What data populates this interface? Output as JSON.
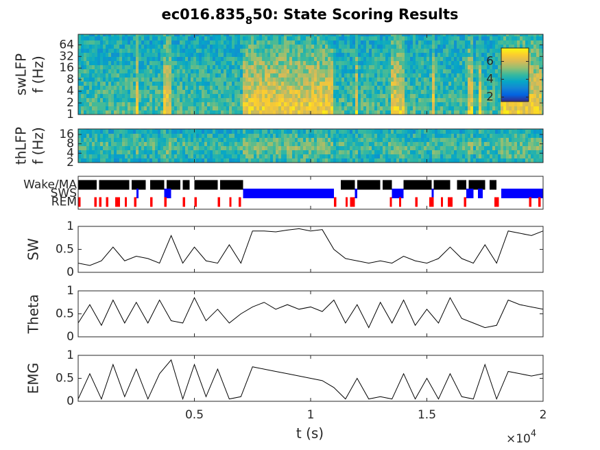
{
  "figure": {
    "title_parts": [
      "ec016.835",
      "8",
      "50: State Scoring Results"
    ],
    "xlabel": "t (s)",
    "x_exponent": [
      "×10",
      "4"
    ],
    "xlim": [
      0,
      20000
    ],
    "xticks": [
      {
        "value": 5000,
        "label": "0.5"
      },
      {
        "value": 10000,
        "label": "1"
      },
      {
        "value": 15000,
        "label": "1.5"
      },
      {
        "value": 20000,
        "label": "2"
      }
    ],
    "x": [
      0,
      500,
      1000,
      1500,
      2000,
      2500,
      3000,
      3500,
      4000,
      4500,
      5000,
      5500,
      6000,
      6500,
      7000,
      7500,
      8000,
      8500,
      9000,
      9500,
      10000,
      10500,
      11000,
      11500,
      12000,
      12500,
      13000,
      13500,
      14000,
      14500,
      15000,
      15500,
      16000,
      16500,
      17000,
      17500,
      18000,
      18500,
      19000,
      19500,
      20000
    ]
  },
  "chart_data": [
    {
      "type": "spectrogram",
      "ylabel": [
        "swLFP",
        "f (Hz)"
      ],
      "log_y": true,
      "ylim": [
        1,
        120
      ],
      "yticks": [
        1,
        2,
        4,
        8,
        16,
        32,
        64
      ],
      "colorbar": {
        "clim": [
          1.5,
          7.5
        ],
        "ticks": [
          2,
          4,
          6
        ]
      }
    },
    {
      "type": "spectrogram",
      "ylabel": [
        "thLFP",
        "f (Hz)"
      ],
      "log_y": true,
      "ylim": [
        2,
        24
      ],
      "yticks": [
        2,
        4,
        8,
        16
      ]
    },
    {
      "type": "state",
      "states": [
        {
          "name": "Wake/MA",
          "color": "#000000",
          "intervals": [
            [
              0,
              800
            ],
            [
              900,
              2200
            ],
            [
              2300,
              2900
            ],
            [
              3100,
              3700
            ],
            [
              3800,
              4400
            ],
            [
              4500,
              4800
            ],
            [
              5000,
              6000
            ],
            [
              6100,
              7100
            ],
            [
              11300,
              11900
            ],
            [
              12000,
              13000
            ],
            [
              13100,
              13500
            ],
            [
              14000,
              15200
            ],
            [
              15300,
              16000
            ],
            [
              16300,
              16700
            ],
            [
              16800,
              17500
            ],
            [
              17700,
              18000
            ]
          ]
        },
        {
          "name": "SWS",
          "color": "#0000ff",
          "intervals": [
            [
              2500,
              2600
            ],
            [
              3700,
              4000
            ],
            [
              7100,
              11000
            ],
            [
              11900,
              12000
            ],
            [
              13500,
              14000
            ],
            [
              15200,
              15300
            ],
            [
              16700,
              17000
            ],
            [
              17200,
              17400
            ],
            [
              18200,
              20000
            ]
          ]
        },
        {
          "name": "REM",
          "color": "#ff0000",
          "intervals": [
            [
              0,
              100
            ],
            [
              700,
              800
            ],
            [
              900,
              1000
            ],
            [
              1200,
              1300
            ],
            [
              1600,
              1800
            ],
            [
              2000,
              2100
            ],
            [
              2400,
              2500
            ],
            [
              3100,
              3200
            ],
            [
              3700,
              3800
            ],
            [
              4500,
              4600
            ],
            [
              5000,
              5100
            ],
            [
              6000,
              6100
            ],
            [
              6500,
              6600
            ],
            [
              6900,
              7000
            ],
            [
              11000,
              11100
            ],
            [
              11500,
              11600
            ],
            [
              11700,
              11900
            ],
            [
              13400,
              13500
            ],
            [
              13800,
              13900
            ],
            [
              14500,
              14600
            ],
            [
              15100,
              15300
            ],
            [
              15600,
              15700
            ],
            [
              15900,
              16100
            ],
            [
              16600,
              16700
            ],
            [
              17900,
              18100
            ],
            [
              19400,
              19500
            ],
            [
              19800,
              19900
            ]
          ]
        }
      ]
    },
    {
      "type": "line",
      "ylabel": "SW",
      "ylim": [
        0,
        1
      ],
      "yticks": [
        0,
        0.5,
        1
      ],
      "color": "#000000",
      "values": [
        0.2,
        0.15,
        0.25,
        0.55,
        0.25,
        0.35,
        0.3,
        0.2,
        0.8,
        0.2,
        0.55,
        0.25,
        0.2,
        0.6,
        0.2,
        0.9,
        0.9,
        0.88,
        0.92,
        0.95,
        0.9,
        0.93,
        0.5,
        0.3,
        0.25,
        0.2,
        0.25,
        0.2,
        0.35,
        0.25,
        0.2,
        0.3,
        0.55,
        0.3,
        0.2,
        0.6,
        0.2,
        0.9,
        0.85,
        0.8,
        0.9
      ]
    },
    {
      "type": "line",
      "ylabel": "Theta",
      "ylim": [
        0,
        1
      ],
      "yticks": [
        0,
        0.5,
        1
      ],
      "color": "#000000",
      "values": [
        0.3,
        0.7,
        0.25,
        0.8,
        0.3,
        0.75,
        0.3,
        0.8,
        0.35,
        0.3,
        0.85,
        0.35,
        0.6,
        0.3,
        0.5,
        0.65,
        0.75,
        0.6,
        0.7,
        0.6,
        0.65,
        0.55,
        0.8,
        0.3,
        0.7,
        0.2,
        0.75,
        0.3,
        0.8,
        0.25,
        0.6,
        0.3,
        0.85,
        0.4,
        0.3,
        0.2,
        0.25,
        0.8,
        0.7,
        0.65,
        0.6
      ]
    },
    {
      "type": "line",
      "ylabel": "EMG",
      "ylim": [
        0,
        1
      ],
      "yticks": [
        0,
        0.5,
        1
      ],
      "color": "#000000",
      "values": [
        0.05,
        0.6,
        0.05,
        0.8,
        0.1,
        0.7,
        0.05,
        0.6,
        0.9,
        0.05,
        0.8,
        0.1,
        0.7,
        0.05,
        0.1,
        0.75,
        0.7,
        0.65,
        0.6,
        0.55,
        0.5,
        0.45,
        0.3,
        0.05,
        0.5,
        0.05,
        0.1,
        0.05,
        0.6,
        0.05,
        0.5,
        0.05,
        0.6,
        0.1,
        0.05,
        0.8,
        0.05,
        0.65,
        0.6,
        0.55,
        0.6
      ]
    }
  ]
}
